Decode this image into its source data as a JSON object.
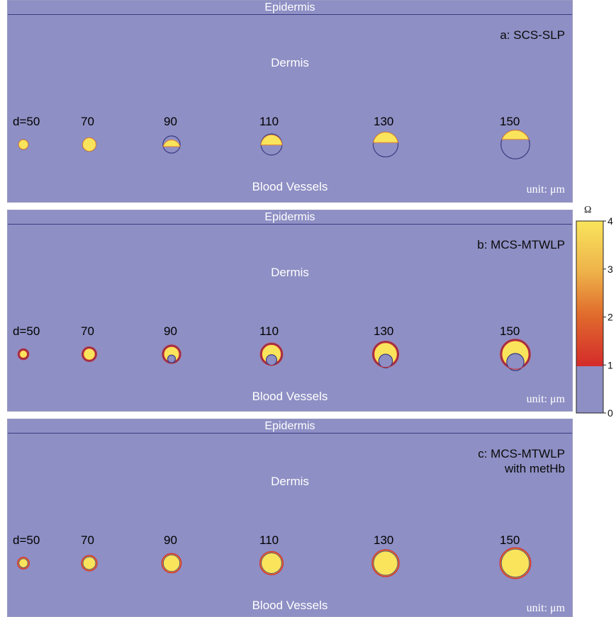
{
  "panels": [
    {
      "id": "a",
      "title_lines": [
        "a: SCS-SLP"
      ],
      "epidermis": "Epidermis",
      "dermis": "Dermis",
      "blood_vessels": "Blood Vessels",
      "unit": "unit: μm",
      "diameters": [
        "d=50",
        "70",
        "90",
        "110",
        "130",
        "150"
      ],
      "treatment": "cap"
    },
    {
      "id": "b",
      "title_lines": [
        "b: MCS-MTWLP"
      ],
      "epidermis": "Epidermis",
      "dermis": "Dermis",
      "blood_vessels": "Blood Vessels",
      "unit": "unit: μm",
      "diameters": [
        "d=50",
        "70",
        "90",
        "110",
        "130",
        "150"
      ],
      "treatment": "crescent"
    },
    {
      "id": "c",
      "title_lines": [
        "c: MCS-MTWLP",
        "with metHb"
      ],
      "epidermis": "Epidermis",
      "dermis": "Dermis",
      "blood_vessels": "Blood Vessels",
      "unit": "unit: μm",
      "diameters": [
        "d=50",
        "70",
        "90",
        "110",
        "130",
        "150"
      ],
      "treatment": "full"
    }
  ],
  "vessel_diameters_um": [
    50,
    70,
    90,
    110,
    130,
    150
  ],
  "colorbar": {
    "symbol": "Ω",
    "ticks": [
      "4",
      "3",
      "2",
      "1",
      "0"
    ],
    "min": 0,
    "max": 4,
    "threshold": 1
  },
  "colors": {
    "background": "#8e8fc4",
    "vessel_outline": "#3a3c82",
    "damage_yellow": "#f9e45c",
    "damage_orange": "#e8862e",
    "damage_red": "#d42b2b"
  }
}
